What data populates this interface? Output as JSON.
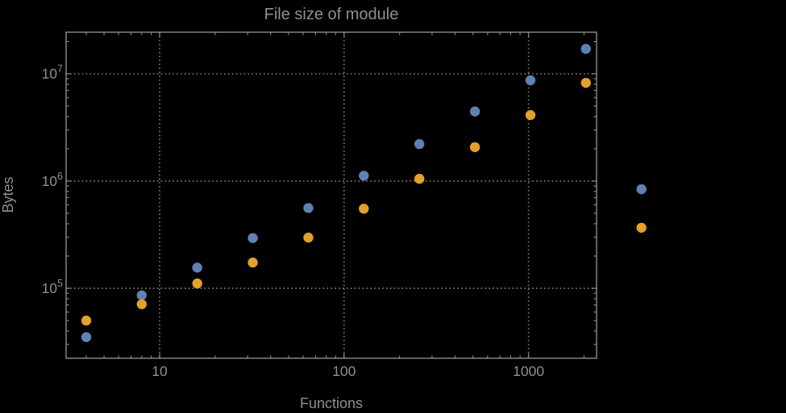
{
  "title": "File size of module",
  "axes": {
    "xlabel": "Functions",
    "ylabel": "Bytes",
    "x_ticks": [
      {
        "label": "10",
        "value": 10
      },
      {
        "label": "100",
        "value": 100
      },
      {
        "label": "1000",
        "value": 1000
      }
    ],
    "y_ticks": [
      {
        "base": "10",
        "exp": "5",
        "value": 100000
      },
      {
        "base": "10",
        "exp": "6",
        "value": 1000000
      },
      {
        "base": "10",
        "exp": "7",
        "value": 10000000
      }
    ]
  },
  "chart_data": {
    "type": "scatter",
    "title": "File size of module",
    "xlabel": "Functions",
    "ylabel": "Bytes",
    "x_scale": "log",
    "y_scale": "log",
    "grid": "dotted-at-decades",
    "legend": "none",
    "x_gridlines": [
      10,
      100,
      1000
    ],
    "y_gridlines": [
      100000,
      1000000,
      10000000
    ],
    "x_range_approx": [
      3.1,
      2340
    ],
    "y_range_approx": [
      22000,
      24500000
    ],
    "series": [
      {
        "name": "series-1-blue",
        "color": "#5e81b5",
        "points": [
          [
            4,
            35000
          ],
          [
            8,
            86000
          ],
          [
            16,
            156000
          ],
          [
            32,
            294000
          ],
          [
            64,
            560000
          ],
          [
            128,
            1120000
          ],
          [
            256,
            2210000
          ],
          [
            512,
            4450000
          ],
          [
            1024,
            8700000
          ],
          [
            2048,
            17100000
          ],
          [
            4096,
            840000
          ]
        ]
      },
      {
        "name": "series-2-orange",
        "color": "#e3a02c",
        "points": [
          [
            4,
            50000
          ],
          [
            8,
            71000
          ],
          [
            16,
            111000
          ],
          [
            32,
            174000
          ],
          [
            64,
            297000
          ],
          [
            128,
            553000
          ],
          [
            256,
            1050000
          ],
          [
            512,
            2070000
          ],
          [
            1024,
            4130000
          ],
          [
            2048,
            8240000
          ],
          [
            4096,
            367000
          ]
        ]
      }
    ]
  },
  "colors": {
    "background": "#000000",
    "frame": "#8c8c8c",
    "grid": "#757575",
    "text": "#8f8f8f",
    "series1": "#5e81b5",
    "series2": "#e3a02c"
  }
}
